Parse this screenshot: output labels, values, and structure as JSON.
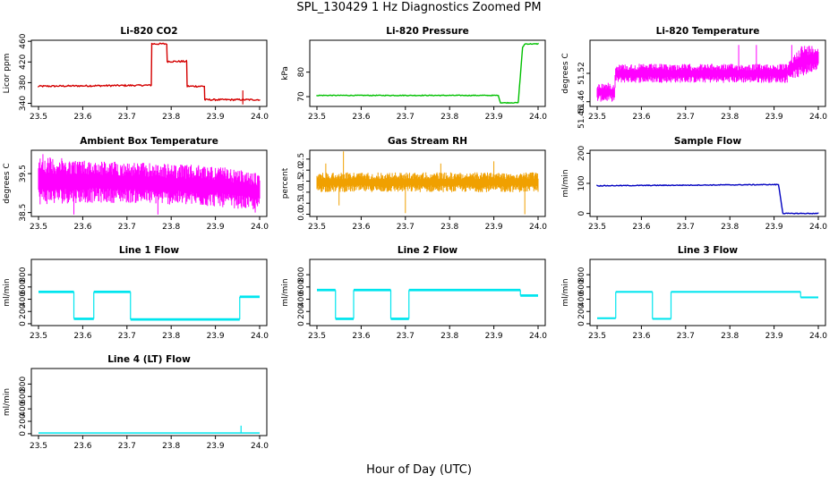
{
  "page_title": "SPL_130429  1 Hz Diagnostics Zoomed PM",
  "x_axis_label": "Hour of Day (UTC)",
  "chart_data": [
    {
      "type": "line",
      "title": "Li-820 CO2",
      "ylabel": "Licor ppm",
      "color": "#d40000",
      "xlim": [
        23.5,
        24.0
      ],
      "ylim": [
        334,
        462
      ],
      "xticks": [
        23.5,
        23.6,
        23.7,
        23.8,
        23.9,
        24.0
      ],
      "yticks": [
        340,
        380,
        420,
        460
      ],
      "noise": 1.5,
      "x": [
        23.5,
        23.755,
        23.756,
        23.79,
        23.791,
        23.835,
        23.836,
        23.875,
        23.876,
        24.0
      ],
      "y": [
        373,
        375,
        455,
        455,
        421,
        421,
        373,
        373,
        347,
        347
      ],
      "spikes": [
        [
          23.962,
          338
        ],
        [
          23.962,
          365
        ]
      ]
    },
    {
      "type": "line",
      "title": "Li-820 Pressure",
      "ylabel": "kPa",
      "color": "#00c000",
      "xlim": [
        23.5,
        24.0
      ],
      "ylim": [
        66,
        93
      ],
      "xticks": [
        23.5,
        23.6,
        23.7,
        23.8,
        23.9,
        24.0
      ],
      "yticks": [
        70,
        80
      ],
      "noise": 0.15,
      "x": [
        23.5,
        23.91,
        23.915,
        23.955,
        23.965,
        23.97,
        24.0
      ],
      "y": [
        70.5,
        70.5,
        67.5,
        67.5,
        90,
        91.5,
        91.5
      ],
      "spikes": []
    },
    {
      "type": "band",
      "title": "Li-820 Temperature",
      "ylabel": "degrees C",
      "color": "#ff00ff",
      "xlim": [
        23.5,
        24.0
      ],
      "ylim": [
        51.45,
        51.59
      ],
      "xticks": [
        23.5,
        23.6,
        23.7,
        23.8,
        23.9,
        24.0
      ],
      "yticks": [
        51.46,
        51.52
      ],
      "ytick_labels": [
        "51.46",
        "51.52"
      ],
      "extra_label": "51.46",
      "x": [
        23.5,
        23.54,
        23.541,
        23.6,
        23.7,
        23.8,
        23.93,
        23.931,
        23.96,
        24.0
      ],
      "lo": [
        51.46,
        51.46,
        51.5,
        51.5,
        51.5,
        51.5,
        51.5,
        51.51,
        51.51,
        51.53
      ],
      "hi": [
        51.5,
        51.5,
        51.54,
        51.54,
        51.54,
        51.54,
        51.54,
        51.54,
        51.58,
        51.58
      ],
      "spikes": [
        [
          23.82,
          51.58
        ],
        [
          23.86,
          51.58
        ],
        [
          23.94,
          51.58
        ]
      ]
    },
    {
      "type": "band",
      "title": "Ambient Box Temperature",
      "ylabel": "degrees C",
      "color": "#ff00ff",
      "xlim": [
        23.5,
        24.0
      ],
      "ylim": [
        38.4,
        40.1
      ],
      "xticks": [
        23.5,
        23.6,
        23.7,
        23.8,
        23.9,
        24.0
      ],
      "yticks": [
        38.5,
        39.5
      ],
      "x": [
        23.5,
        23.6,
        23.7,
        23.8,
        23.9,
        24.0
      ],
      "lo": [
        38.7,
        38.75,
        38.75,
        38.7,
        38.65,
        38.55
      ],
      "hi": [
        39.95,
        39.85,
        39.8,
        39.75,
        39.7,
        39.5
      ],
      "spikes": [
        [
          23.51,
          40.0
        ],
        [
          23.58,
          38.45
        ],
        [
          23.77,
          38.45
        ],
        [
          23.99,
          38.5
        ]
      ]
    },
    {
      "type": "band",
      "title": "Gas Stream RH",
      "ylabel": "percent",
      "color": "#f0a000",
      "xlim": [
        23.5,
        24.0
      ],
      "ylim": [
        -0.1,
        2.9
      ],
      "xticks": [
        23.5,
        23.6,
        23.7,
        23.8,
        23.9,
        24.0
      ],
      "yticks": [
        0.0,
        0.5,
        1.0,
        1.5,
        2.0,
        2.5
      ],
      "ytick_labels": [
        "0.0",
        "0.5",
        "1.0",
        "1.5",
        "2.0",
        "2.5"
      ],
      "x": [
        23.5,
        23.6,
        23.7,
        23.8,
        23.9,
        24.0
      ],
      "lo": [
        1.0,
        1.0,
        1.0,
        1.0,
        1.0,
        1.0
      ],
      "hi": [
        1.9,
        1.9,
        1.9,
        1.9,
        1.9,
        1.9
      ],
      "spikes": [
        [
          23.56,
          2.85
        ],
        [
          23.55,
          0.4
        ],
        [
          23.7,
          0.05
        ],
        [
          23.78,
          2.3
        ],
        [
          23.9,
          2.4
        ],
        [
          23.97,
          0.0
        ],
        [
          23.52,
          2.3
        ]
      ]
    },
    {
      "type": "line",
      "title": "Sample Flow",
      "ylabel": "ml/min",
      "color": "#0000c0",
      "xlim": [
        23.5,
        24.0
      ],
      "ylim": [
        -10,
        210
      ],
      "xticks": [
        23.5,
        23.6,
        23.7,
        23.8,
        23.9,
        24.0
      ],
      "yticks": [
        0,
        100,
        200
      ],
      "noise": 1.2,
      "x": [
        23.5,
        23.91,
        23.92,
        24.0
      ],
      "y": [
        92,
        96,
        0,
        0
      ],
      "spikes": []
    },
    {
      "type": "steps",
      "title": "Line 1 Flow",
      "ylabel": "ml/min",
      "color": "#00e5ee",
      "xlim": [
        23.5,
        24.0
      ],
      "ylim": [
        -30,
        1050
      ],
      "xticks": [
        23.5,
        23.6,
        23.7,
        23.8,
        23.9,
        24.0
      ],
      "yticks": [
        0,
        200,
        400,
        600,
        800
      ],
      "band_height": 40,
      "segments": [
        [
          23.5,
          23.58,
          520
        ],
        [
          23.58,
          23.625,
          80
        ],
        [
          23.625,
          23.708,
          520
        ],
        [
          23.708,
          23.955,
          70
        ],
        [
          23.955,
          24.0,
          440
        ]
      ]
    },
    {
      "type": "steps",
      "title": "Line 2 Flow",
      "ylabel": "ml/min",
      "color": "#00e5ee",
      "xlim": [
        23.5,
        24.0
      ],
      "ylim": [
        -30,
        1050
      ],
      "xticks": [
        23.5,
        23.6,
        23.7,
        23.8,
        23.9,
        24.0
      ],
      "yticks": [
        0,
        200,
        400,
        600,
        800
      ],
      "band_height": 40,
      "segments": [
        [
          23.5,
          23.542,
          550
        ],
        [
          23.542,
          23.583,
          80
        ],
        [
          23.583,
          23.667,
          550
        ],
        [
          23.667,
          23.708,
          80
        ],
        [
          23.708,
          23.96,
          550
        ],
        [
          23.96,
          24.0,
          460
        ]
      ]
    },
    {
      "type": "steps",
      "title": "Line 3 Flow",
      "ylabel": "ml/min",
      "color": "#00e5ee",
      "xlim": [
        23.5,
        24.0
      ],
      "ylim": [
        -30,
        1050
      ],
      "xticks": [
        23.5,
        23.6,
        23.7,
        23.8,
        23.9,
        24.0
      ],
      "yticks": [
        0,
        200,
        400,
        600,
        800
      ],
      "band_height": 30,
      "segments": [
        [
          23.5,
          23.542,
          90
        ],
        [
          23.542,
          23.625,
          520
        ],
        [
          23.625,
          23.667,
          80
        ],
        [
          23.667,
          23.96,
          520
        ],
        [
          23.96,
          24.0,
          430
        ]
      ]
    },
    {
      "type": "steps",
      "title": "Line 4 (LT) Flow",
      "ylabel": "ml/min",
      "color": "#00e5ee",
      "xlim": [
        23.5,
        24.0
      ],
      "ylim": [
        -30,
        1050
      ],
      "xticks": [
        23.5,
        23.6,
        23.7,
        23.8,
        23.9,
        24.0
      ],
      "yticks": [
        0,
        200,
        400,
        600,
        800
      ],
      "band_height": 6,
      "segments": [
        [
          23.5,
          24.0,
          20
        ]
      ],
      "spikes": [
        [
          23.958,
          130
        ]
      ]
    }
  ]
}
